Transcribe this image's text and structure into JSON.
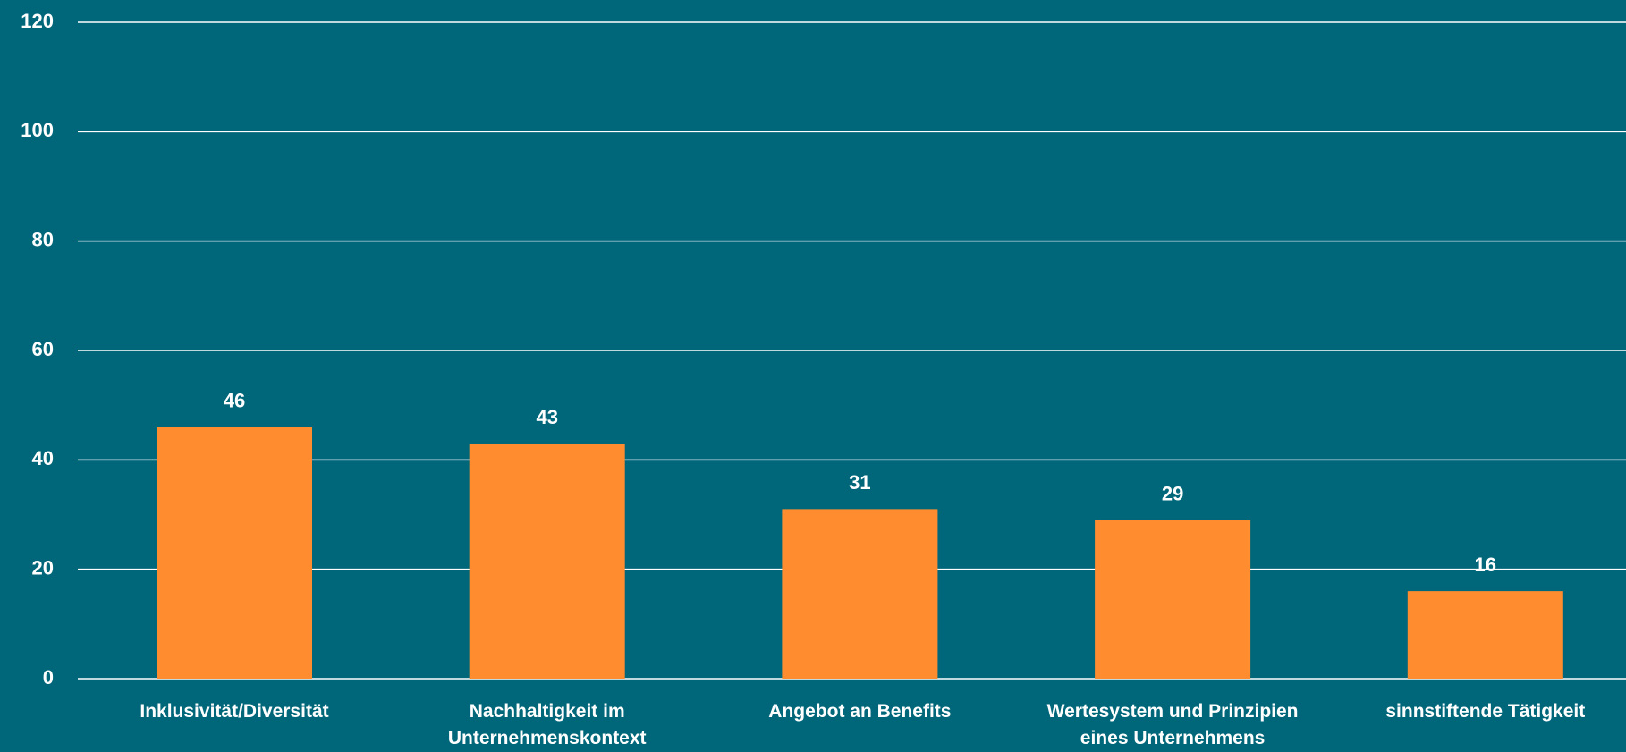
{
  "chart_data": {
    "type": "bar",
    "categories": [
      "Inklusivität/Diversität",
      "Nachhaltigkeit im Unternehmenskontext",
      "Angebot an Benefits",
      "Wertesystem und Prinzipien eines Unternehmens",
      "sinnstiftende Tätigkeit"
    ],
    "values": [
      46,
      43,
      31,
      29,
      16
    ],
    "color": "#ff8c2e",
    "ylim": [
      0,
      120
    ],
    "yticks": [
      0,
      20,
      40,
      60,
      80,
      100,
      120
    ],
    "grid": true
  }
}
